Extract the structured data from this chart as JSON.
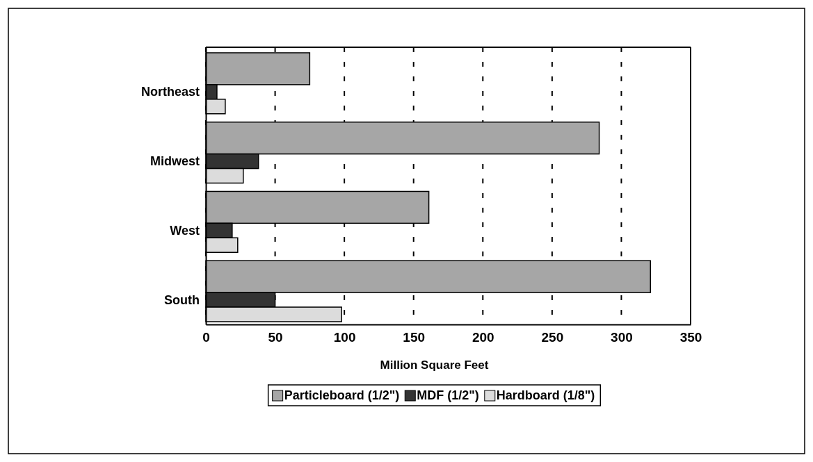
{
  "chart_data": {
    "type": "bar",
    "orientation": "horizontal",
    "categories": [
      "Northeast",
      "Midwest",
      "West",
      "South"
    ],
    "series": [
      {
        "name": "Particleboard (1/2\")",
        "color": "#a6a6a6",
        "values": [
          75,
          284,
          161,
          321
        ]
      },
      {
        "name": "MDF (1/2\")",
        "color": "#333333",
        "values": [
          8,
          38,
          19,
          50
        ]
      },
      {
        "name": "Hardboard (1/8\")",
        "color": "#dcdcdc",
        "values": [
          14,
          27,
          23,
          98
        ]
      }
    ],
    "xlim": [
      0,
      350
    ],
    "xticks": [
      0,
      50,
      100,
      150,
      200,
      250,
      300,
      350
    ],
    "xlabel": "Million Square Feet",
    "grid": "x",
    "legend": "bottom"
  }
}
